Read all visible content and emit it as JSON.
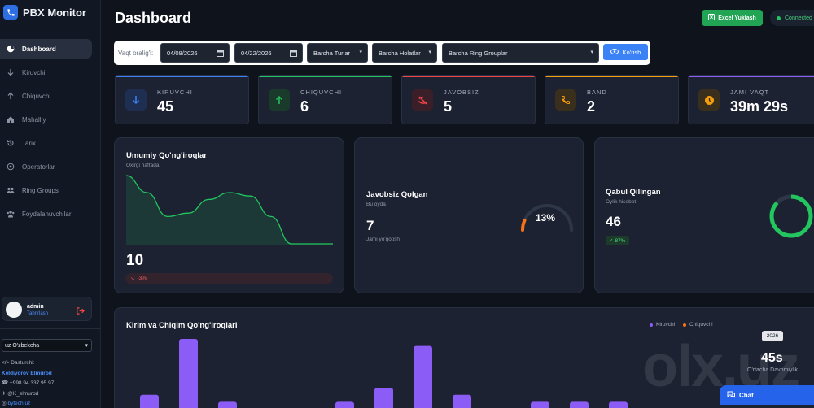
{
  "app": {
    "title": "PBX Monitor"
  },
  "sidebar": {
    "items": [
      {
        "label": "Dashboard",
        "icon": "dashboard-icon"
      },
      {
        "label": "Kiruvchi",
        "icon": "arrow-down-icon"
      },
      {
        "label": "Chiquvchi",
        "icon": "arrow-up-icon"
      },
      {
        "label": "Mahalliy",
        "icon": "home-icon"
      },
      {
        "label": "Tarix",
        "icon": "history-icon"
      },
      {
        "label": "Operatorlar",
        "icon": "headset-icon"
      },
      {
        "label": "Ring Groups",
        "icon": "users-icon"
      },
      {
        "label": "Foydalanuvchilar",
        "icon": "user-group-icon"
      }
    ],
    "user": {
      "name": "admin",
      "edit_label": "Tahrirlash"
    },
    "language": "uz O'zbekcha",
    "developer": {
      "label": "Dasturchi:",
      "name": "Keldiyorov Elmurod",
      "phone": "+998 94 337 95 97",
      "telegram": "@K_elmurod",
      "site": "bytech.uz"
    }
  },
  "header": {
    "title": "Dashboard",
    "excel_label": "Excel Yuklash",
    "connection_label": "Connected"
  },
  "filter": {
    "label": "Vaqt oralig'i:",
    "date_from": "04/08/2026",
    "date_to": "04/22/2026",
    "types": "Barcha Turlar",
    "statuses": "Barcha Holatlar",
    "ring_groups": "Barcha Ring Grouplar",
    "submit_label": "Ko'rish"
  },
  "stats": [
    {
      "label": "KIRUVCHI",
      "value": "45",
      "accent": "#3b82f6",
      "icon": "arrow-down-icon"
    },
    {
      "label": "CHIQUVCHI",
      "value": "6",
      "accent": "#22c55e",
      "icon": "arrow-up-icon"
    },
    {
      "label": "JAVOBSIZ",
      "value": "5",
      "accent": "#ef4444",
      "icon": "missed-call-icon"
    },
    {
      "label": "BAND",
      "value": "2",
      "accent": "#f59e0b",
      "icon": "phone-busy-icon"
    },
    {
      "label": "JAMI VAQT",
      "value": "39m 29s",
      "accent": "#8b5cf6",
      "icon": "clock-icon"
    }
  ],
  "total_card": {
    "title": "Umumiy Qo'ng'iroqlar",
    "subtitle": "Oxirgi haftada",
    "value": "10",
    "change": "-3%"
  },
  "missed_card": {
    "title": "Javobsiz Qolgan",
    "subtitle": "Bu oyda",
    "value": "7",
    "caption": "Jami yo'qotish",
    "percent_label": "13%",
    "percent": 13
  },
  "answered_card": {
    "title": "Qabul Qilingan",
    "subtitle": "Oylik hisobot",
    "value": "46",
    "badge": "87%",
    "percent": 87
  },
  "flow_card": {
    "title": "Kirim va Chiqim Qo'ng'iroqlari",
    "legend": [
      {
        "label": "Kiruvchi",
        "color": "#8b5cf6"
      },
      {
        "label": "Chiquvchi",
        "color": "#f97316"
      }
    ],
    "year": "2026",
    "avg_value": "45s",
    "avg_label": "O'rtacha Davomiylik"
  },
  "chart_data": [
    {
      "type": "area",
      "title": "Umumiy Qo'ng'iroqlar",
      "x": [
        0,
        1,
        2,
        3,
        4,
        5,
        6,
        7,
        8,
        9,
        10
      ],
      "values": [
        10,
        7.5,
        4,
        4.5,
        6.5,
        7.5,
        7,
        4,
        0,
        0,
        0
      ],
      "ylim": [
        0,
        10
      ]
    },
    {
      "type": "bar",
      "title": "Kirim va Chiqim Qo'ng'iroqlari",
      "series": [
        {
          "name": "Kiruvchi",
          "values": [
            2,
            10,
            1,
            0,
            0,
            1,
            3,
            9,
            2,
            0,
            1,
            1,
            1,
            0,
            0
          ]
        },
        {
          "name": "Chiquvchi",
          "values": [
            0,
            0,
            0,
            0,
            0,
            0,
            0,
            0,
            0,
            0,
            0,
            0,
            0,
            0,
            0
          ]
        }
      ],
      "ylim": [
        0,
        10
      ]
    }
  ],
  "chat_label": "Chat",
  "watermark": "olx.uz",
  "colors": {
    "background": "#0e131c",
    "card": "#1c2231",
    "primary": "#3b82f6",
    "success": "#22c55e"
  }
}
